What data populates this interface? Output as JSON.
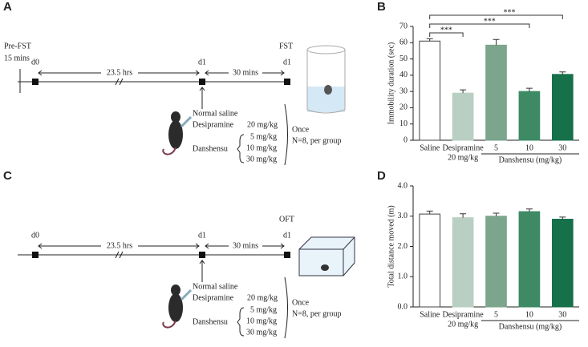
{
  "panels": [
    "A",
    "B",
    "C",
    "D"
  ],
  "diagram_a": {
    "pre_label": "Pre-FST",
    "pre_duration": "15 mins",
    "day0": "d0",
    "interval1": "23.5 hrs",
    "day1": "d1",
    "interval2": "30 mins",
    "day1_end": "d1",
    "test": "FST",
    "treatments": [
      "Normal saline",
      "Desipramine",
      "Danshensu"
    ],
    "desipramine_dose": "20 mg/kg",
    "danshensu_doses": [
      "5 mg/kg",
      "10 mg/kg",
      "30 mg/kg"
    ],
    "frequency": "Once",
    "group_size": "N=8, per group"
  },
  "diagram_c": {
    "day0": "d0",
    "interval1": "23.5 hrs",
    "day1": "d1",
    "interval2": "30 mins",
    "day1_end": "d1",
    "test": "OFT",
    "treatments": [
      "Normal saline",
      "Desipramine",
      "Danshensu"
    ],
    "desipramine_dose": "20 mg/kg",
    "danshensu_doses": [
      "5 mg/kg",
      "10 mg/kg",
      "30 mg/kg"
    ],
    "frequency": "Once",
    "group_size": "N=8, per group"
  },
  "chart_data": [
    {
      "type": "bar",
      "y_label": "Immobility duration (sec)",
      "categories": [
        "Saline",
        "Desipramine",
        "5",
        "10",
        "30"
      ],
      "desipramine_dose": "20 mg/kg",
      "group_label": "Danshensu (mg/kg)",
      "values": [
        61,
        29,
        58.5,
        30,
        40.5
      ],
      "errors": [
        1.5,
        2,
        3.5,
        2,
        1.5
      ],
      "colors": [
        "#ffffff",
        "#b9cfc3",
        "#7ca58e",
        "#3d8a64",
        "#16704a"
      ],
      "ylim": [
        0,
        70
      ],
      "yticks": [
        0,
        10,
        20,
        30,
        40,
        50,
        60,
        70
      ],
      "significance": [
        {
          "label": "***",
          "pair": [
            "Saline",
            "Desipramine"
          ]
        },
        {
          "label": "***",
          "pair": [
            "Saline",
            "10"
          ]
        },
        {
          "label": "***",
          "pair": [
            "Saline",
            "30"
          ]
        }
      ]
    },
    {
      "type": "bar",
      "y_label": "Total distance moved (m)",
      "categories": [
        "Saline",
        "Desipramine",
        "5",
        "10",
        "30"
      ],
      "desipramine_dose": "20 mg/kg",
      "group_label": "Danshensu (mg/kg)",
      "values": [
        3.07,
        2.95,
        3.0,
        3.15,
        2.9
      ],
      "errors": [
        0.1,
        0.13,
        0.1,
        0.09,
        0.07
      ],
      "colors": [
        "#ffffff",
        "#b9cfc3",
        "#7ca58e",
        "#3d8a64",
        "#16704a"
      ],
      "ylim": [
        0,
        4
      ],
      "yticks": [
        {
          "value": 0,
          "label": "0.0"
        },
        {
          "value": 1,
          "label": "1.0"
        },
        {
          "value": 2,
          "label": "2.0"
        },
        {
          "value": 3,
          "label": "3.0"
        },
        {
          "value": 4,
          "label": "4.0"
        }
      ]
    }
  ]
}
